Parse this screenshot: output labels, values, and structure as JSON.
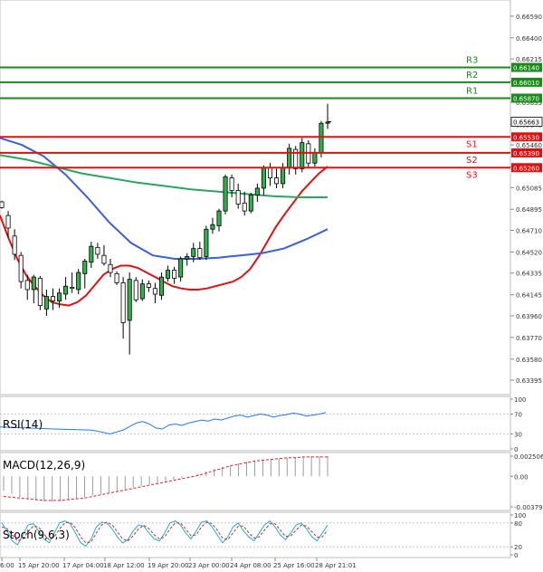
{
  "chart_data": [
    {
      "type": "candlestick",
      "title": "",
      "y_tick_labels": [
        "0.66590",
        "0.66400",
        "0.66215",
        "0.66020",
        "0.65835",
        "0.65640",
        "0.65460",
        "0.65270",
        "0.65085",
        "0.64895",
        "0.64710",
        "0.64520",
        "0.64335",
        "0.64145",
        "0.63960",
        "0.63770",
        "0.63580",
        "0.63395"
      ],
      "y_range": [
        0.633,
        0.667
      ],
      "last_price_label": "0.65663",
      "levels": [
        {
          "label": "R3",
          "price_label": "0.66140",
          "value": 0.6614,
          "color": "#1a8a1a"
        },
        {
          "label": "R2",
          "price_label": "0.66010",
          "value": 0.6601,
          "color": "#1a8a1a"
        },
        {
          "label": "R1",
          "price_label": "0.65870",
          "value": 0.6587,
          "color": "#1a8a1a"
        },
        {
          "label": "S1",
          "price_label": "0.65530",
          "value": 0.6553,
          "color": "#e01010"
        },
        {
          "label": "S2",
          "price_label": "0.65390",
          "value": 0.6539,
          "color": "#e01010"
        },
        {
          "label": "S3",
          "price_label": "0.65260",
          "value": 0.6526,
          "color": "#e01010"
        }
      ],
      "x_tick_labels": [
        "6:00",
        "15 Apr 20:00",
        "17 Apr 04:00",
        "18 Apr 12:00",
        "19 Apr 20:00",
        "23 Apr 00:00",
        "24 Apr 08:00",
        "25 Apr 16:00",
        "28 Apr 21:01"
      ],
      "ohlc": [
        [
          0.6496,
          0.6497,
          0.649,
          0.6491
        ],
        [
          0.6484,
          0.6488,
          0.6465,
          0.6473
        ],
        [
          0.6466,
          0.6472,
          0.6445,
          0.645
        ],
        [
          0.6449,
          0.6452,
          0.642,
          0.6426
        ],
        [
          0.6427,
          0.6432,
          0.641,
          0.6419
        ],
        [
          0.6419,
          0.6432,
          0.6407,
          0.643
        ],
        [
          0.6429,
          0.6431,
          0.6401,
          0.6405
        ],
        [
          0.6402,
          0.6419,
          0.6396,
          0.6413
        ],
        [
          0.6413,
          0.642,
          0.6401,
          0.6409
        ],
        [
          0.6409,
          0.642,
          0.6403,
          0.6416
        ],
        [
          0.6415,
          0.643,
          0.641,
          0.6422
        ],
        [
          0.6421,
          0.6434,
          0.6416,
          0.642
        ],
        [
          0.6419,
          0.6437,
          0.6415,
          0.6434
        ],
        [
          0.6433,
          0.6446,
          0.642,
          0.6444
        ],
        [
          0.6443,
          0.6461,
          0.6438,
          0.6457
        ],
        [
          0.6456,
          0.646,
          0.6446,
          0.645
        ],
        [
          0.6449,
          0.6458,
          0.644,
          0.6442
        ],
        [
          0.6441,
          0.6446,
          0.643,
          0.6434
        ],
        [
          0.6433,
          0.6435,
          0.6423,
          0.6425
        ],
        [
          0.6425,
          0.643,
          0.6376,
          0.639
        ],
        [
          0.6392,
          0.6434,
          0.6362,
          0.6428
        ],
        [
          0.6427,
          0.643,
          0.6408,
          0.641
        ],
        [
          0.6411,
          0.6428,
          0.6409,
          0.6424
        ],
        [
          0.6424,
          0.6427,
          0.6417,
          0.6421
        ],
        [
          0.642,
          0.6425,
          0.6407,
          0.6415
        ],
        [
          0.6414,
          0.6434,
          0.641,
          0.643
        ],
        [
          0.6429,
          0.644,
          0.6426,
          0.6436
        ],
        [
          0.6436,
          0.6439,
          0.6424,
          0.6429
        ],
        [
          0.643,
          0.6448,
          0.6426,
          0.6446
        ],
        [
          0.6446,
          0.6451,
          0.644,
          0.6448
        ],
        [
          0.6448,
          0.646,
          0.6443,
          0.6455
        ],
        [
          0.6455,
          0.6461,
          0.6445,
          0.6447
        ],
        [
          0.6448,
          0.6475,
          0.6445,
          0.6472
        ],
        [
          0.6472,
          0.6482,
          0.6468,
          0.6476
        ],
        [
          0.6475,
          0.649,
          0.647,
          0.6488
        ],
        [
          0.6488,
          0.652,
          0.6485,
          0.6518
        ],
        [
          0.6517,
          0.652,
          0.65,
          0.6506
        ],
        [
          0.6506,
          0.6512,
          0.649,
          0.6494
        ],
        [
          0.6495,
          0.6505,
          0.6484,
          0.6488
        ],
        [
          0.6488,
          0.6504,
          0.6486,
          0.6502
        ],
        [
          0.6502,
          0.6512,
          0.6496,
          0.6508
        ],
        [
          0.6508,
          0.6528,
          0.6502,
          0.6526
        ],
        [
          0.6526,
          0.653,
          0.651,
          0.6517
        ],
        [
          0.6517,
          0.6525,
          0.6508,
          0.6512
        ],
        [
          0.6512,
          0.653,
          0.6508,
          0.6526
        ],
        [
          0.6526,
          0.6547,
          0.652,
          0.6543
        ],
        [
          0.6542,
          0.6545,
          0.652,
          0.6525
        ],
        [
          0.6525,
          0.6552,
          0.6522,
          0.6548
        ],
        [
          0.6547,
          0.655,
          0.6526,
          0.653
        ],
        [
          0.653,
          0.6543,
          0.6527,
          0.6539
        ],
        [
          0.6539,
          0.6567,
          0.6535,
          0.6565
        ],
        [
          0.6565,
          0.6582,
          0.656,
          0.6566
        ]
      ],
      "moving_averages": [
        {
          "name": "",
          "color": "#e01010",
          "values": [
            0.6484,
            0.6464,
            0.6446,
            0.6432,
            0.6422,
            0.6414,
            0.6408,
            0.6406,
            0.6405,
            0.6408,
            0.6414,
            0.6423,
            0.6432,
            0.6437,
            0.644,
            0.644,
            0.6438,
            0.6434,
            0.643,
            0.6426,
            0.6422,
            0.642,
            0.6419,
            0.6419,
            0.642,
            0.6422,
            0.6424,
            0.6426,
            0.643,
            0.6437,
            0.6448,
            0.6461,
            0.6474,
            0.6485,
            0.6495,
            0.6505,
            0.6513,
            0.6521,
            0.6527
          ]
        },
        {
          "name": "",
          "color": "#3a5fd8",
          "values": [
            0.6552,
            0.6546,
            0.6536,
            0.652,
            0.65,
            0.6478,
            0.646,
            0.6449,
            0.6446,
            0.6446,
            0.6447,
            0.6449,
            0.6451,
            0.6455,
            0.6463,
            0.6472
          ]
        },
        {
          "name": "",
          "color": "#28a85c",
          "values": [
            0.6537,
            0.6533,
            0.6527,
            0.6521,
            0.6517,
            0.6513,
            0.651,
            0.6507,
            0.6505,
            0.6503,
            0.6501,
            0.65,
            0.65
          ]
        }
      ]
    },
    {
      "type": "line",
      "title": "RSI(14)",
      "y_tick_labels": [
        "100",
        "70",
        "30",
        "0"
      ],
      "ylim": [
        0,
        100
      ],
      "series": [
        {
          "color": "#1e78ff",
          "values": [
            38,
            36,
            33,
            30,
            34,
            38,
            45,
            52,
            55,
            50,
            42,
            40,
            48,
            50,
            47,
            52,
            55,
            58,
            56,
            60,
            58,
            62,
            66,
            68,
            64,
            67,
            70,
            68,
            64,
            67,
            69,
            72,
            70,
            66,
            68,
            70,
            73
          ]
        }
      ]
    },
    {
      "type": "bar",
      "title": "MACD(12,26,9)",
      "y_tick_labels": [
        "0.002506",
        "0.00",
        "-0.003797"
      ],
      "ylim": [
        -0.003797,
        0.002506
      ],
      "histogram_values": [
        -0.0018,
        -0.0022,
        -0.0026,
        -0.0028,
        -0.003,
        -0.0031,
        -0.0032,
        -0.0031,
        -0.003,
        -0.0028,
        -0.0026,
        -0.0024,
        -0.0022,
        -0.002,
        -0.0018,
        -0.0016,
        -0.0014,
        -0.0012,
        -0.001,
        -0.0008,
        -0.0006,
        -0.0004,
        -0.0002,
        0.0,
        0.0003,
        0.0006,
        0.0009,
        0.0012,
        0.0014,
        0.0016,
        0.0018,
        0.0019,
        0.002,
        0.0021,
        0.0022,
        0.0023,
        0.0024,
        0.0024,
        0.0025,
        0.0025,
        0.0025
      ],
      "signal_values": [
        -0.0025,
        -0.0026,
        -0.0027,
        -0.0028,
        -0.0029,
        -0.003,
        -0.003,
        -0.003,
        -0.0029,
        -0.0028,
        -0.0027,
        -0.0025,
        -0.0023,
        -0.0021,
        -0.0019,
        -0.0017,
        -0.0015,
        -0.0013,
        -0.0011,
        -0.0009,
        -0.0007,
        -0.0005,
        -0.0003,
        -0.0001,
        0.0001,
        0.0004,
        0.0007,
        0.001,
        0.0013,
        0.0015,
        0.0017,
        0.0019,
        0.002,
        0.0021,
        0.0022,
        0.0023,
        0.0023,
        0.0024,
        0.0024,
        0.0024,
        0.0024
      ]
    },
    {
      "type": "line",
      "title": "Stoch(9,6,3)",
      "y_tick_labels": [
        "100",
        "80",
        "20",
        "0"
      ],
      "ylim": [
        0,
        100
      ],
      "series": [
        {
          "color": "#1ab0c8",
          "values": [
            80,
            60,
            35,
            25,
            50,
            75,
            78,
            60,
            40,
            30,
            55,
            80,
            85,
            78,
            55,
            30,
            22,
            40,
            70,
            82,
            80,
            65,
            45,
            30,
            38,
            60,
            75,
            72,
            55,
            40,
            35,
            55,
            80,
            85,
            75,
            55,
            40,
            60,
            82,
            85,
            70,
            50,
            30,
            45,
            70,
            80,
            60,
            45,
            35,
            55,
            75,
            85,
            70,
            50,
            38,
            55,
            75,
            80,
            65,
            45,
            35,
            55,
            75
          ]
        },
        {
          "color": "#e02020",
          "values": [
            70,
            66,
            50,
            35,
            40,
            58,
            72,
            70,
            52,
            38,
            45,
            65,
            80,
            82,
            68,
            45,
            30,
            32,
            55,
            75,
            82,
            75,
            58,
            40,
            35,
            48,
            65,
            74,
            66,
            50,
            40,
            45,
            65,
            80,
            80,
            65,
            48,
            50,
            70,
            82,
            78,
            62,
            42,
            38,
            55,
            72,
            72,
            55,
            42,
            45,
            62,
            78,
            78,
            62,
            46,
            48,
            62,
            75,
            72,
            58,
            44,
            45,
            62
          ]
        }
      ]
    }
  ]
}
